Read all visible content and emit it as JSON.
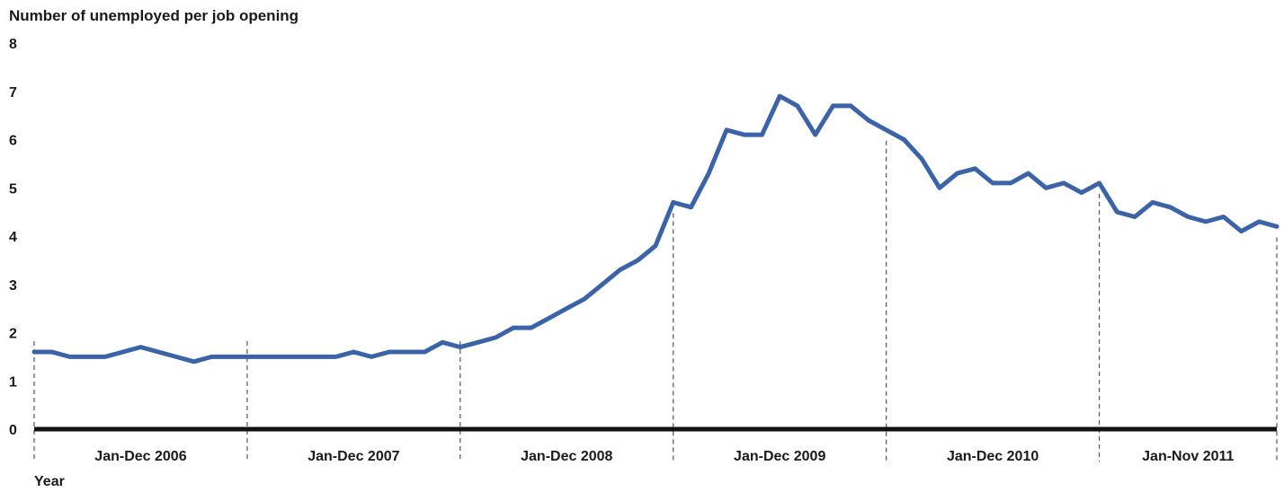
{
  "chart_data": {
    "type": "line",
    "ylabel": "Number of unemployed per job opening",
    "xlabel": "Year",
    "ylim": [
      0,
      8
    ],
    "yticks": [
      "0",
      "1",
      "2",
      "3",
      "4",
      "5",
      "6",
      "7",
      "8"
    ],
    "grid": false,
    "line_color": "#3a63a8",
    "periods": [
      {
        "label": "Jan-Dec 2006",
        "months": 12
      },
      {
        "label": "Jan-Dec 2007",
        "months": 12
      },
      {
        "label": "Jan-Dec 2008",
        "months": 12
      },
      {
        "label": "Jan-Dec 2009",
        "months": 12
      },
      {
        "label": "Jan-Dec 2010",
        "months": 12
      },
      {
        "label": "Jan-Nov 2011",
        "months": 11
      }
    ],
    "series": [
      {
        "values": [
          1.6,
          1.6,
          1.5,
          1.5,
          1.5,
          1.6,
          1.7,
          1.6,
          1.5,
          1.4,
          1.5,
          1.5,
          1.5,
          1.5,
          1.5,
          1.5,
          1.5,
          1.5,
          1.6,
          1.5,
          1.6,
          1.6,
          1.6,
          1.8,
          1.7,
          1.8,
          1.9,
          2.1,
          2.1,
          2.3,
          2.5,
          2.7,
          3.0,
          3.3,
          3.5,
          3.8,
          4.7,
          4.6,
          5.3,
          6.2,
          6.1,
          6.1,
          6.9,
          6.7,
          6.1,
          6.7,
          6.7,
          6.4,
          6.2,
          6.0,
          5.6,
          5.0,
          5.3,
          5.4,
          5.1,
          5.1,
          5.3,
          5.0,
          5.1,
          4.9,
          5.1,
          4.5,
          4.4,
          4.7,
          4.6,
          4.4,
          4.3,
          4.4,
          4.1,
          4.3,
          4.2
        ]
      }
    ]
  }
}
